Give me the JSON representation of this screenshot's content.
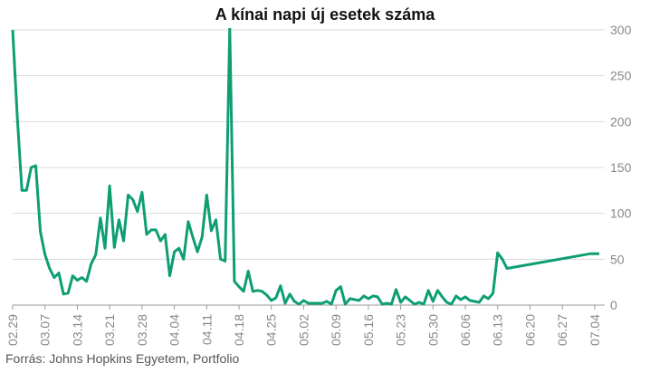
{
  "chart_data": {
    "type": "line",
    "title": "A kínai napi új esetek száma",
    "source": "Forrás: Johns Hopkins Egyetem, Portfolio",
    "ylim": [
      0,
      300
    ],
    "y_ticks": [
      0,
      50,
      100,
      150,
      200,
      250,
      300
    ],
    "x_tick_labels": [
      "02.29",
      "03.07",
      "03.14",
      "03.21",
      "03.28",
      "04.04",
      "04.11",
      "04.18",
      "04.25",
      "05.02",
      "05.09",
      "05.16",
      "05.23",
      "05.30",
      "06.06",
      "06.13",
      "06.20",
      "06.27",
      "07.04"
    ],
    "grid": true,
    "line_color": "#0e9e73",
    "series": [
      {
        "values": [
          [
            0,
            300
          ],
          [
            1,
            205
          ],
          [
            2,
            125
          ],
          [
            3,
            125
          ],
          [
            4,
            150
          ],
          [
            5,
            152
          ],
          [
            6,
            80
          ],
          [
            7,
            55
          ],
          [
            8,
            40
          ],
          [
            9,
            30
          ],
          [
            10,
            35
          ],
          [
            11,
            12
          ],
          [
            12,
            13
          ],
          [
            13,
            32
          ],
          [
            14,
            27
          ],
          [
            15,
            30
          ],
          [
            16,
            26
          ],
          [
            17,
            45
          ],
          [
            18,
            55
          ],
          [
            19,
            95
          ],
          [
            20,
            62
          ],
          [
            21,
            130
          ],
          [
            22,
            63
          ],
          [
            23,
            93
          ],
          [
            24,
            70
          ],
          [
            25,
            120
          ],
          [
            26,
            115
          ],
          [
            27,
            102
          ],
          [
            28,
            123
          ],
          [
            29,
            77
          ],
          [
            30,
            82
          ],
          [
            31,
            82
          ],
          [
            32,
            70
          ],
          [
            33,
            77
          ],
          [
            34,
            32
          ],
          [
            35,
            58
          ],
          [
            36,
            62
          ],
          [
            37,
            50
          ],
          [
            38,
            91
          ],
          [
            39,
            74
          ],
          [
            40,
            58
          ],
          [
            41,
            74
          ],
          [
            42,
            120
          ],
          [
            43,
            81
          ],
          [
            44,
            93
          ],
          [
            45,
            50
          ],
          [
            46,
            48
          ],
          [
            47,
            302
          ],
          [
            48,
            26
          ],
          [
            49,
            20
          ],
          [
            50,
            15
          ],
          [
            51,
            37
          ],
          [
            52,
            15
          ],
          [
            53,
            16
          ],
          [
            54,
            15
          ],
          [
            55,
            11
          ],
          [
            56,
            5
          ],
          [
            57,
            8
          ],
          [
            58,
            21
          ],
          [
            59,
            2
          ],
          [
            60,
            12
          ],
          [
            61,
            4
          ],
          [
            62,
            1
          ],
          [
            63,
            5
          ],
          [
            64,
            2
          ],
          [
            65,
            2
          ],
          [
            66,
            2
          ],
          [
            67,
            2
          ],
          [
            68,
            4
          ],
          [
            69,
            1
          ],
          [
            70,
            16
          ],
          [
            71,
            20
          ],
          [
            72,
            1
          ],
          [
            73,
            7
          ],
          [
            74,
            6
          ],
          [
            75,
            5
          ],
          [
            76,
            10
          ],
          [
            77,
            7
          ],
          [
            78,
            10
          ],
          [
            79,
            9
          ],
          [
            80,
            1
          ],
          [
            81,
            2
          ],
          [
            82,
            1
          ],
          [
            83,
            17
          ],
          [
            84,
            3
          ],
          [
            85,
            9
          ],
          [
            86,
            5
          ],
          [
            87,
            1
          ],
          [
            88,
            3
          ],
          [
            89,
            1
          ],
          [
            90,
            16
          ],
          [
            91,
            4
          ],
          [
            92,
            16
          ],
          [
            93,
            9
          ],
          [
            94,
            3
          ],
          [
            95,
            1
          ],
          [
            96,
            10
          ],
          [
            97,
            6
          ],
          [
            98,
            9
          ],
          [
            99,
            5
          ],
          [
            100,
            4
          ],
          [
            101,
            3
          ],
          [
            102,
            10
          ],
          [
            103,
            7
          ],
          [
            104,
            13
          ],
          [
            105,
            57
          ],
          [
            106,
            50
          ],
          [
            107,
            40
          ],
          [
            125,
            56
          ],
          [
            127,
            56
          ]
        ]
      }
    ]
  }
}
